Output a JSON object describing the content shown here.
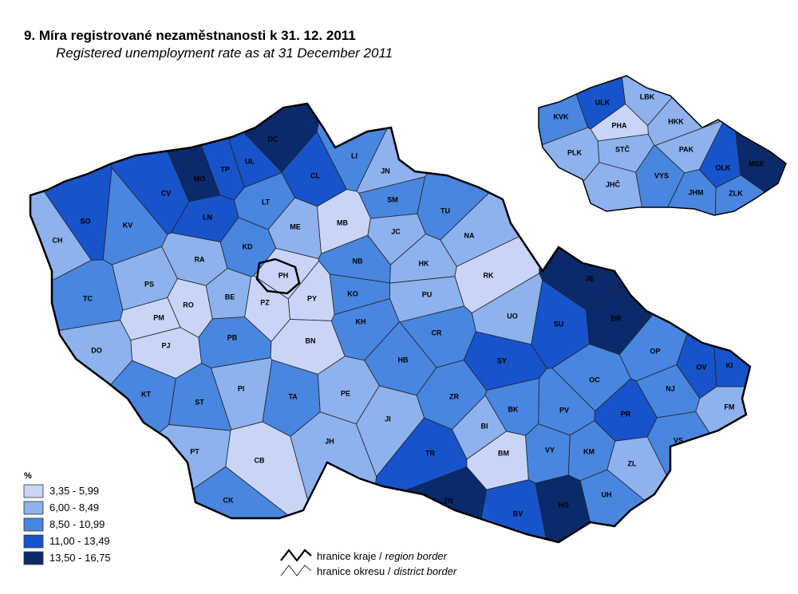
{
  "header": {
    "title": "9. Míra registrované nezaměstnanosti k 31. 12. 2011",
    "subtitle": "Registered unemployment rate as at 31 December 2011"
  },
  "legend": {
    "title": "%",
    "items": [
      {
        "label": "3,35 - 5,99",
        "color": "#c8d5f8"
      },
      {
        "label": "6,00 - 8,49",
        "color": "#8db2ee"
      },
      {
        "label": "8,50 - 10,99",
        "color": "#4886e0"
      },
      {
        "label": "11,00 - 13,49",
        "color": "#1753cb"
      },
      {
        "label": "13,50 - 16,75",
        "color": "#0b2a6c"
      }
    ]
  },
  "border_legend": [
    {
      "cz": "hranice kraje /",
      "en": "region border"
    },
    {
      "cz": "hranice okresu /",
      "en": "district border"
    }
  ],
  "districts": [
    {
      "label": "CH",
      "color": "#8db2ee"
    },
    {
      "label": "SO",
      "color": "#1753cb"
    },
    {
      "label": "KV",
      "color": "#4886e0"
    },
    {
      "label": "CV",
      "color": "#1753cb"
    },
    {
      "label": "MO",
      "color": "#0b2a6c"
    },
    {
      "label": "TP",
      "color": "#1753cb"
    },
    {
      "label": "UL",
      "color": "#1753cb"
    },
    {
      "label": "DC",
      "color": "#0b2a6c"
    },
    {
      "label": "CL",
      "color": "#1753cb"
    },
    {
      "label": "LI",
      "color": "#4886e0"
    },
    {
      "label": "JN",
      "color": "#8db2ee"
    },
    {
      "label": "SM",
      "color": "#4886e0"
    },
    {
      "label": "LT",
      "color": "#4886e0"
    },
    {
      "label": "LN",
      "color": "#1753cb"
    },
    {
      "label": "ME",
      "color": "#8db2ee"
    },
    {
      "label": "MB",
      "color": "#c8d5f8"
    },
    {
      "label": "JC",
      "color": "#8db2ee"
    },
    {
      "label": "TU",
      "color": "#4886e0"
    },
    {
      "label": "NA",
      "color": "#8db2ee"
    },
    {
      "label": "RA",
      "color": "#8db2ee"
    },
    {
      "label": "KD",
      "color": "#4886e0"
    },
    {
      "label": "NB",
      "color": "#4886e0"
    },
    {
      "label": "HK",
      "color": "#8db2ee"
    },
    {
      "label": "RK",
      "color": "#c8d5f8"
    },
    {
      "label": "PH",
      "color": "#c8d5f8"
    },
    {
      "label": "PS",
      "color": "#8db2ee"
    },
    {
      "label": "TC",
      "color": "#4886e0"
    },
    {
      "label": "RO",
      "color": "#c8d5f8"
    },
    {
      "label": "BE",
      "color": "#8db2ee"
    },
    {
      "label": "PZ",
      "color": "#c8d5f8"
    },
    {
      "label": "PY",
      "color": "#c8d5f8"
    },
    {
      "label": "KO",
      "color": "#4886e0"
    },
    {
      "label": "PU",
      "color": "#8db2ee"
    },
    {
      "label": "UO",
      "color": "#8db2ee"
    },
    {
      "label": "JE",
      "color": "#0b2a6c"
    },
    {
      "label": "SU",
      "color": "#1753cb"
    },
    {
      "label": "BR",
      "color": "#0b2a6c"
    },
    {
      "label": "PM",
      "color": "#c8d5f8"
    },
    {
      "label": "PJ",
      "color": "#c8d5f8"
    },
    {
      "label": "DO",
      "color": "#8db2ee"
    },
    {
      "label": "PB",
      "color": "#4886e0"
    },
    {
      "label": "BN",
      "color": "#c8d5f8"
    },
    {
      "label": "KH",
      "color": "#4886e0"
    },
    {
      "label": "CR",
      "color": "#4886e0"
    },
    {
      "label": "SY",
      "color": "#1753cb"
    },
    {
      "label": "HB",
      "color": "#4886e0"
    },
    {
      "label": "OP",
      "color": "#4886e0"
    },
    {
      "label": "OV",
      "color": "#1753cb"
    },
    {
      "label": "KI",
      "color": "#1753cb"
    },
    {
      "label": "OC",
      "color": "#4886e0"
    },
    {
      "label": "NJ",
      "color": "#4886e0"
    },
    {
      "label": "FM",
      "color": "#8db2ee"
    },
    {
      "label": "KT",
      "color": "#4886e0"
    },
    {
      "label": "ST",
      "color": "#4886e0"
    },
    {
      "label": "PI",
      "color": "#8db2ee"
    },
    {
      "label": "TA",
      "color": "#4886e0"
    },
    {
      "label": "PE",
      "color": "#8db2ee"
    },
    {
      "label": "ZR",
      "color": "#4886e0"
    },
    {
      "label": "BK",
      "color": "#4886e0"
    },
    {
      "label": "PV",
      "color": "#4886e0"
    },
    {
      "label": "PR",
      "color": "#1753cb"
    },
    {
      "label": "JI",
      "color": "#8db2ee"
    },
    {
      "label": "BI",
      "color": "#8db2ee"
    },
    {
      "label": "VS",
      "color": "#4886e0"
    },
    {
      "label": "PT",
      "color": "#8db2ee"
    },
    {
      "label": "CB",
      "color": "#c8d5f8"
    },
    {
      "label": "JH",
      "color": "#8db2ee"
    },
    {
      "label": "TR",
      "color": "#1753cb"
    },
    {
      "label": "BM",
      "color": "#c8d5f8"
    },
    {
      "label": "VY",
      "color": "#4886e0"
    },
    {
      "label": "KM",
      "color": "#4886e0"
    },
    {
      "label": "ZL",
      "color": "#8db2ee"
    },
    {
      "label": "UH",
      "color": "#4886e0"
    },
    {
      "label": "CK",
      "color": "#4886e0"
    },
    {
      "label": "ZN",
      "color": "#0b2a6c"
    },
    {
      "label": "BV",
      "color": "#1753cb"
    },
    {
      "label": "HO",
      "color": "#0b2a6c"
    }
  ],
  "regions": [
    {
      "label": "KVK",
      "color": "#4886e0"
    },
    {
      "label": "ULK",
      "color": "#1753cb"
    },
    {
      "label": "LBK",
      "color": "#8db2ee"
    },
    {
      "label": "HKK",
      "color": "#8db2ee"
    },
    {
      "label": "PHA",
      "color": "#c8d5f8"
    },
    {
      "label": "PLK",
      "color": "#8db2ee"
    },
    {
      "label": "STČ",
      "color": "#8db2ee"
    },
    {
      "label": "PAK",
      "color": "#8db2ee"
    },
    {
      "label": "VYS",
      "color": "#4886e0"
    },
    {
      "label": "OLK",
      "color": "#1753cb"
    },
    {
      "label": "MSK",
      "color": "#0b2a6c"
    },
    {
      "label": "JHČ",
      "color": "#8db2ee"
    },
    {
      "label": "JHM",
      "color": "#4886e0"
    },
    {
      "label": "ZLK",
      "color": "#4886e0"
    }
  ]
}
